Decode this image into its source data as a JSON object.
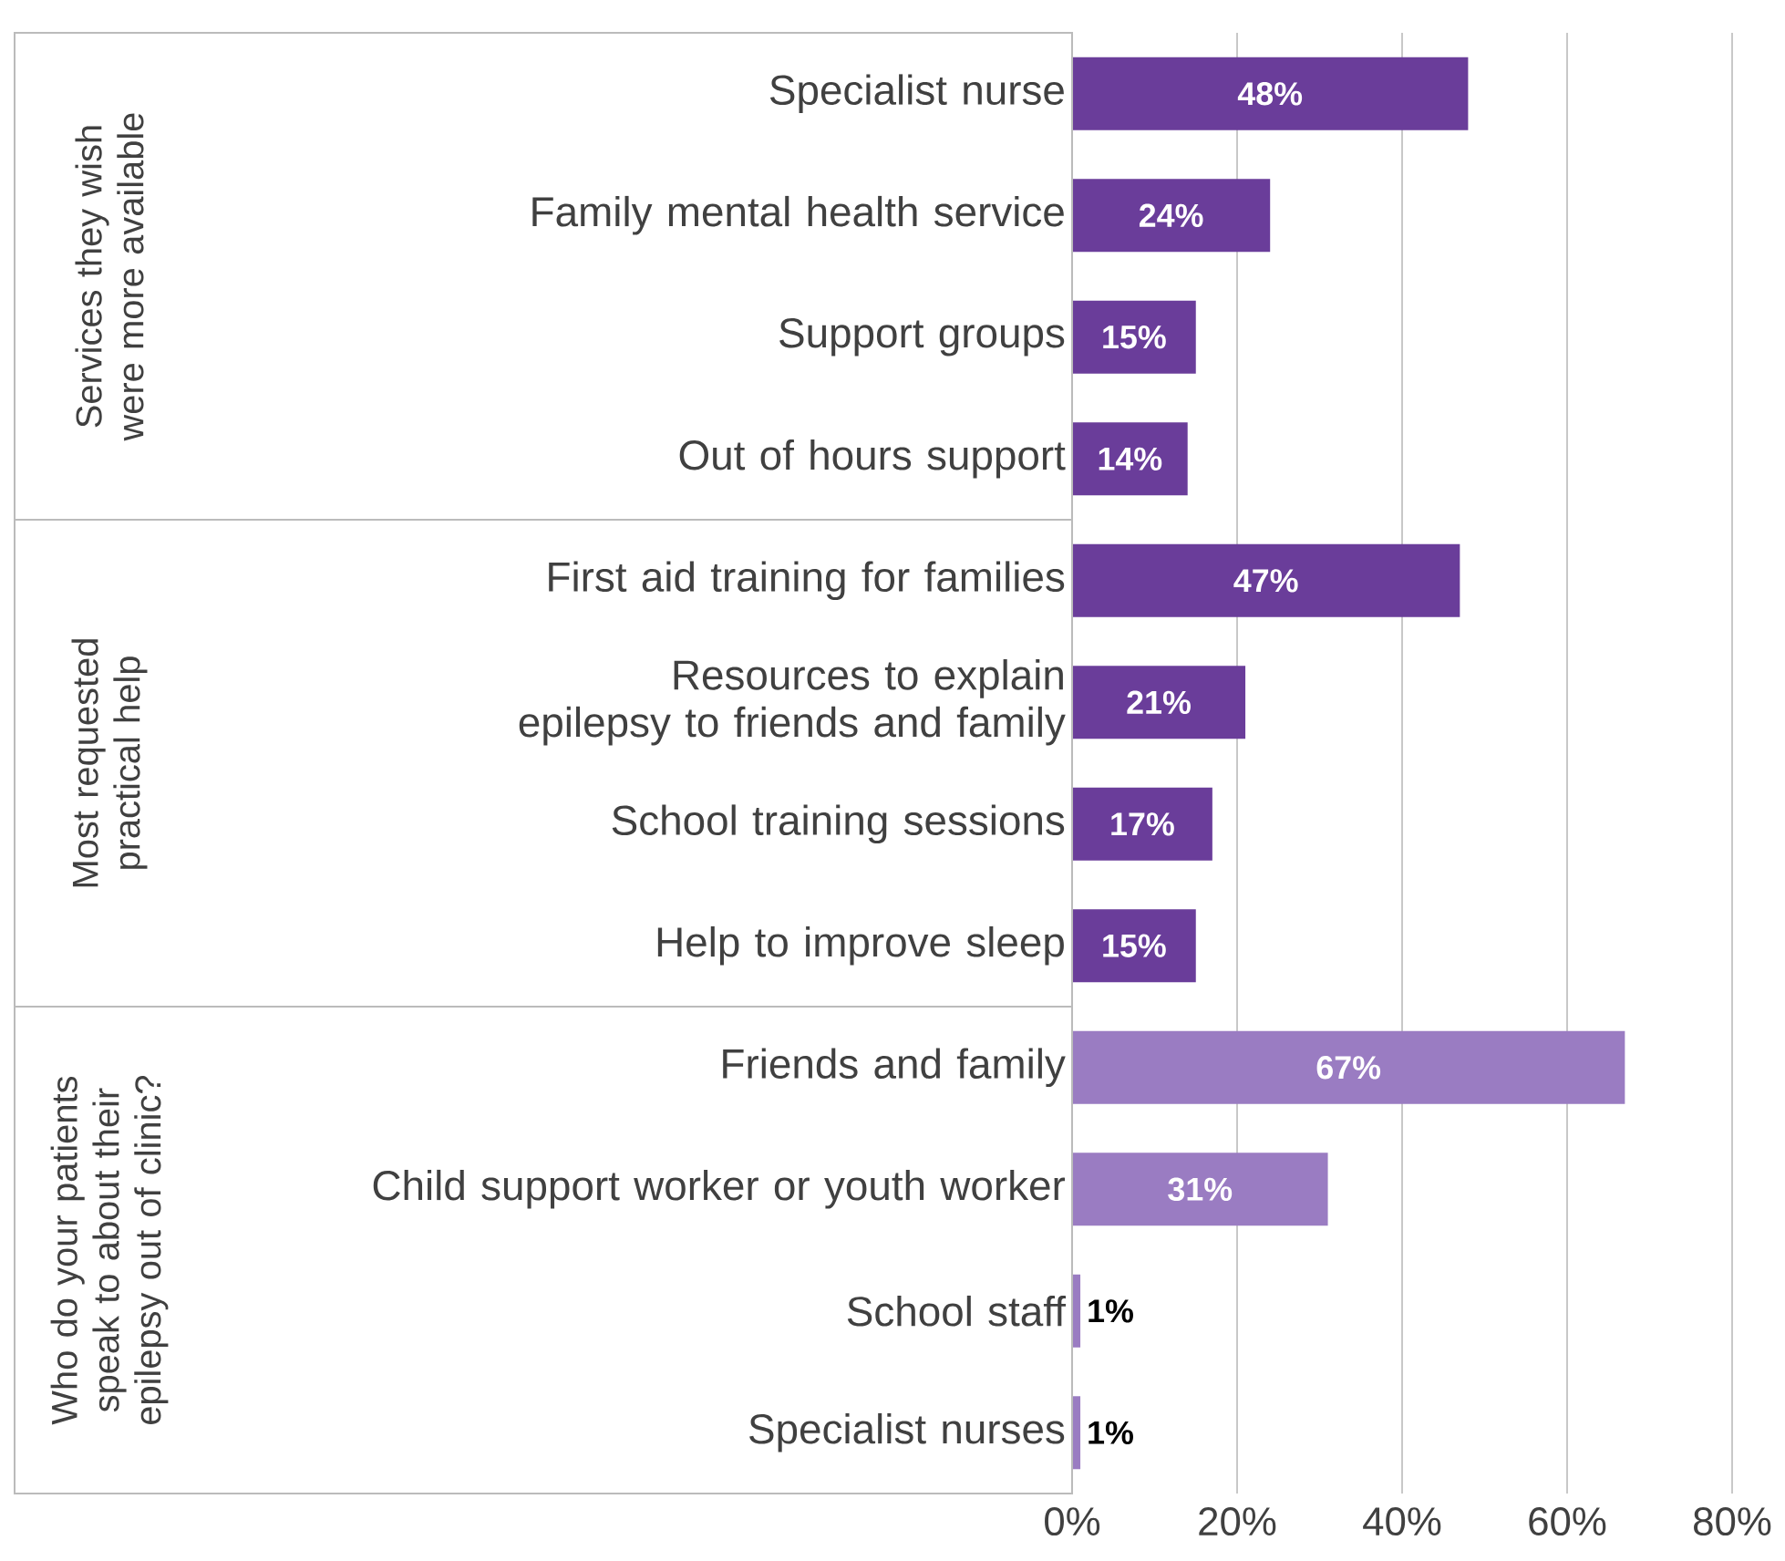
{
  "chart_data": [
    {
      "type": "bar",
      "orientation": "horizontal",
      "ylabel": "Services they wish were more available",
      "categories": [
        "Specialist nurse",
        "Family mental health service",
        "Support groups",
        "Out of hours support"
      ],
      "values": [
        48,
        24,
        15,
        14
      ],
      "value_labels": [
        "48%",
        "24%",
        "15%",
        "14%"
      ],
      "colors": [
        "#6a3d9a",
        "#6a3d9a",
        "#6a3d9a",
        "#6a3d9a"
      ],
      "xlim": [
        0,
        80
      ],
      "xticks": [
        0,
        20,
        40,
        60,
        80
      ],
      "grid": "x",
      "tick_labels": "y"
    },
    {
      "type": "bar",
      "orientation": "horizontal",
      "ylabel": "Most requested practical help",
      "categories": [
        "First aid training for families",
        "Resources to explain epilepsy to friends and family",
        "School training sessions",
        "Help to improve sleep"
      ],
      "values": [
        47,
        21,
        17,
        15
      ],
      "value_labels": [
        "47%",
        "21%",
        "17%",
        "15%"
      ],
      "colors": [
        "#6a3d9a",
        "#6a3d9a",
        "#6a3d9a",
        "#6a3d9a"
      ],
      "xlim": [
        0,
        80
      ],
      "xticks": [
        0,
        20,
        40,
        60,
        80
      ],
      "grid": "x",
      "tick_labels": "y"
    },
    {
      "type": "bar",
      "orientation": "horizontal",
      "ylabel": "Who do your patients speak to about their epilepsy out of clinic?",
      "categories": [
        "Friends and family",
        "Child support worker or youth worker",
        "School staff",
        "Specialist nurses"
      ],
      "values": [
        67,
        31,
        1,
        1
      ],
      "value_labels": [
        "67%",
        "31%",
        "1%",
        "1%"
      ],
      "colors": [
        "#9a7cc2",
        "#9a7cc2",
        "#9a7cc2",
        "#9a7cc2"
      ],
      "xlim": [
        0,
        80
      ],
      "xticks": [
        {
          "value": 0,
          "label": "0%"
        },
        {
          "value": 20,
          "label": "20%"
        },
        {
          "value": 40,
          "label": "40%"
        },
        {
          "value": 60,
          "label": "60%"
        },
        {
          "value": 80,
          "label": "80%"
        }
      ],
      "grid": "x"
    }
  ]
}
